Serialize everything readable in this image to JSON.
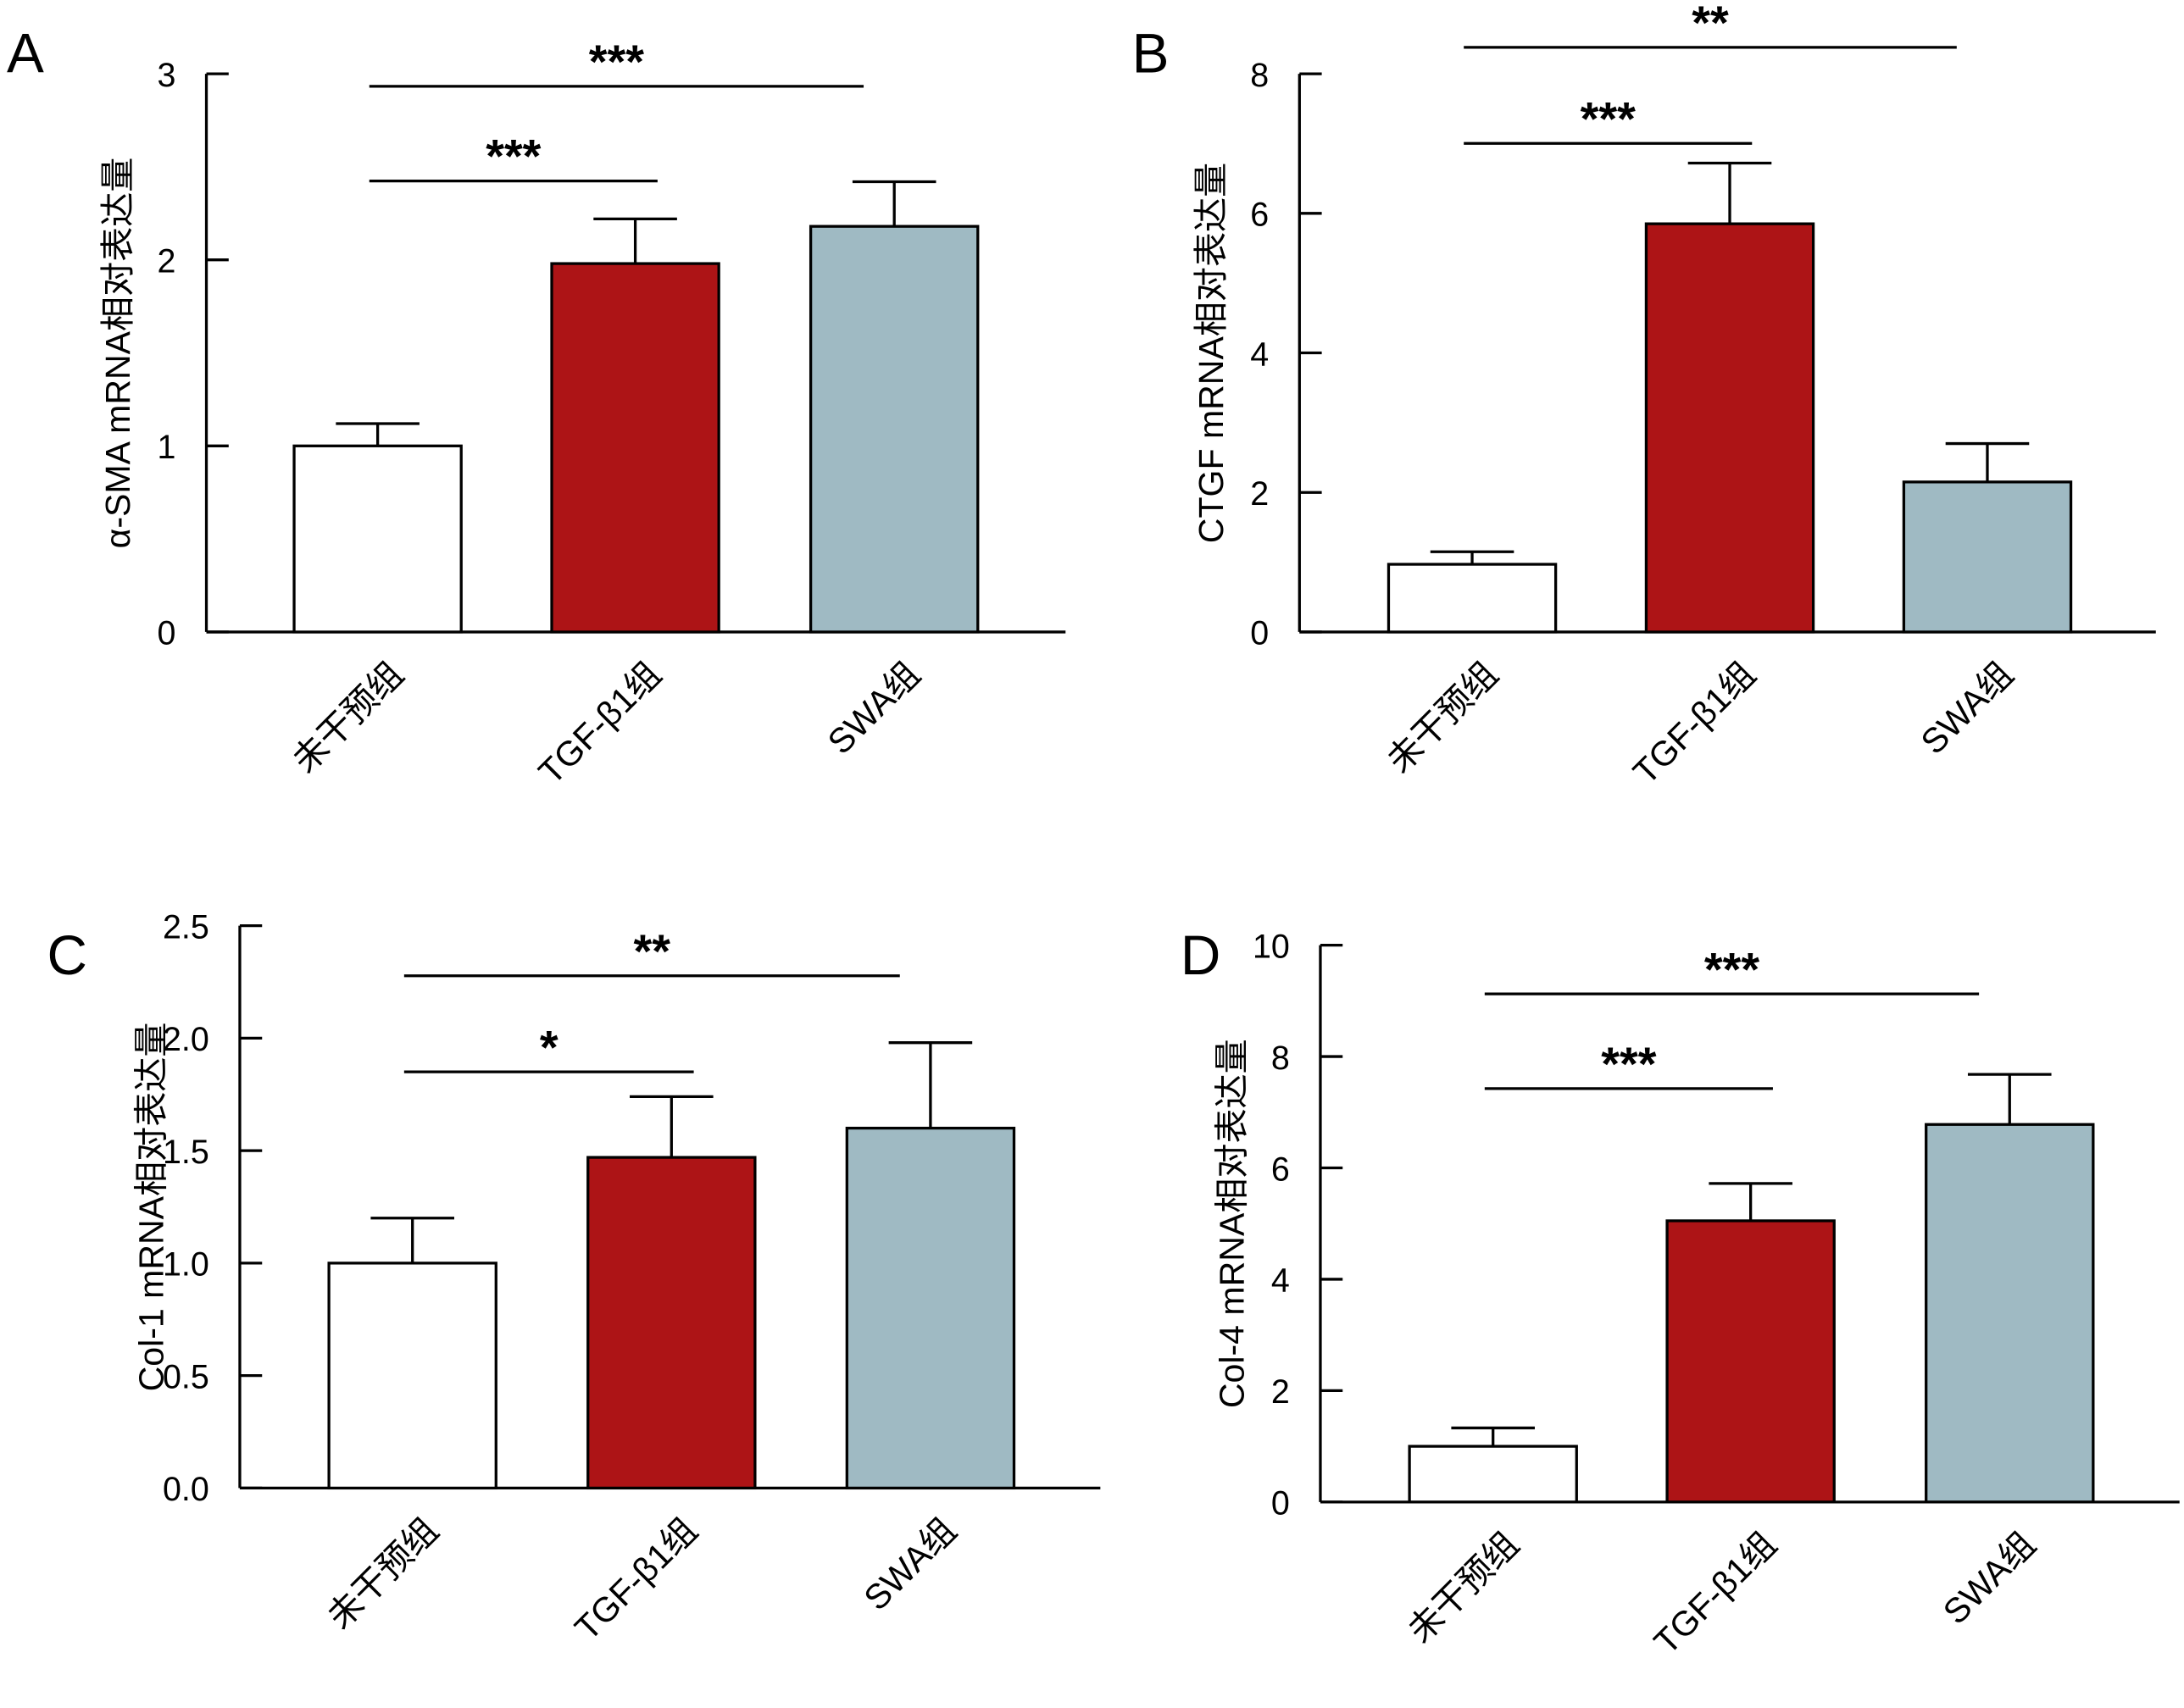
{
  "chart_data": [
    {
      "type": "bar",
      "panel": "A",
      "ylabel": "α-SMA mRNA相对表达量",
      "ylim": [
        0,
        3
      ],
      "yticks": [
        "0",
        "1",
        "2",
        "3"
      ],
      "categories": [
        "未干预组",
        "TGF-β1组",
        "SWA组"
      ],
      "values": [
        1.0,
        1.98,
        2.18
      ],
      "errors": [
        0.12,
        0.24,
        0.24
      ],
      "significance": [
        {
          "from": 0,
          "to": 1,
          "label": "***"
        },
        {
          "from": 0,
          "to": 2,
          "label": "***"
        }
      ]
    },
    {
      "type": "bar",
      "panel": "B",
      "ylabel": "CTGF mRNA相对表达量",
      "ylim": [
        0,
        8
      ],
      "yticks": [
        "0",
        "2",
        "4",
        "6",
        "8"
      ],
      "categories": [
        "未干预组",
        "TGF-β1组",
        "SWA组"
      ],
      "values": [
        0.97,
        5.85,
        2.15
      ],
      "errors": [
        0.18,
        0.87,
        0.55
      ],
      "significance": [
        {
          "from": 0,
          "to": 1,
          "label": "***"
        },
        {
          "from": 0,
          "to": 2,
          "label": "**"
        }
      ]
    },
    {
      "type": "bar",
      "panel": "C",
      "ylabel": "Col-1 mRNA相对表达量",
      "ylim": [
        0,
        2.5
      ],
      "yticks": [
        "0.0",
        "0.5",
        "1.0",
        "1.5",
        "2.0",
        "2.5"
      ],
      "categories": [
        "未干预组",
        "TGF-β1组",
        "SWA组"
      ],
      "values": [
        1.0,
        1.47,
        1.6
      ],
      "errors": [
        0.2,
        0.27,
        0.38
      ],
      "significance": [
        {
          "from": 0,
          "to": 1,
          "label": "*"
        },
        {
          "from": 0,
          "to": 2,
          "label": "**"
        }
      ]
    },
    {
      "type": "bar",
      "panel": "D",
      "ylabel": "Col-4 mRNA相对表达量",
      "ylim": [
        0,
        10
      ],
      "yticks": [
        "0",
        "2",
        "4",
        "6",
        "8",
        "10"
      ],
      "categories": [
        "未干预组",
        "TGF-β1组",
        "SWA组"
      ],
      "values": [
        1.0,
        5.05,
        6.78
      ],
      "errors": [
        0.33,
        0.67,
        0.9
      ],
      "significance": [
        {
          "from": 0,
          "to": 1,
          "label": "***"
        },
        {
          "from": 0,
          "to": 2,
          "label": "***"
        }
      ]
    }
  ],
  "colors": {
    "bars": [
      "#FFFFFF",
      "#AD1416",
      "#9FBAC3"
    ],
    "stroke": "#000000"
  }
}
